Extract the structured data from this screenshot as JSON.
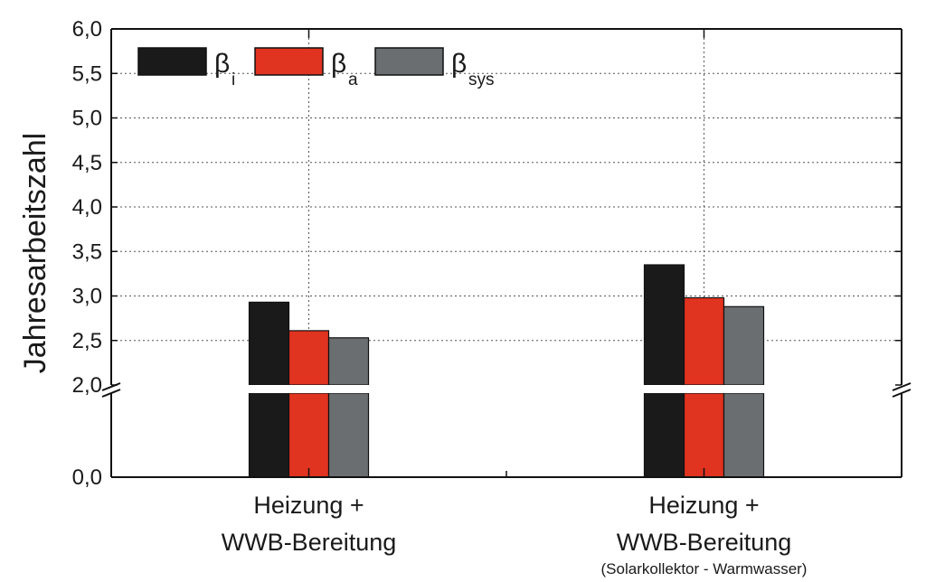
{
  "chart_data": {
    "type": "bar",
    "ylabel": "Jahresarbeitszahl",
    "categories": [
      {
        "line1": "Heizung +",
        "line2": "WWB-Bereitung",
        "note": ""
      },
      {
        "line1": "Heizung +",
        "line2": "WWB-Bereitung",
        "note": "(Solarkollektor - Warmwasser)"
      }
    ],
    "series": [
      {
        "symbol": "β",
        "sub": "i",
        "color": "#1a1a1a",
        "values": [
          2.93,
          3.35
        ]
      },
      {
        "symbol": "β",
        "sub": "a",
        "color": "#e03320",
        "values": [
          2.61,
          2.98
        ]
      },
      {
        "symbol": "β",
        "sub": "sys",
        "color": "#6b6e70",
        "values": [
          2.53,
          2.88
        ]
      }
    ],
    "yticks_upper": [
      "2,0",
      "2,5",
      "3,0",
      "3,5",
      "4,0",
      "4,5",
      "5,0",
      "5,5",
      "6,0"
    ],
    "ytick_lower": "0,0",
    "ylim": [
      0,
      6
    ],
    "axis_break": [
      0,
      2
    ],
    "grid": true,
    "legend_position": "top-left"
  }
}
